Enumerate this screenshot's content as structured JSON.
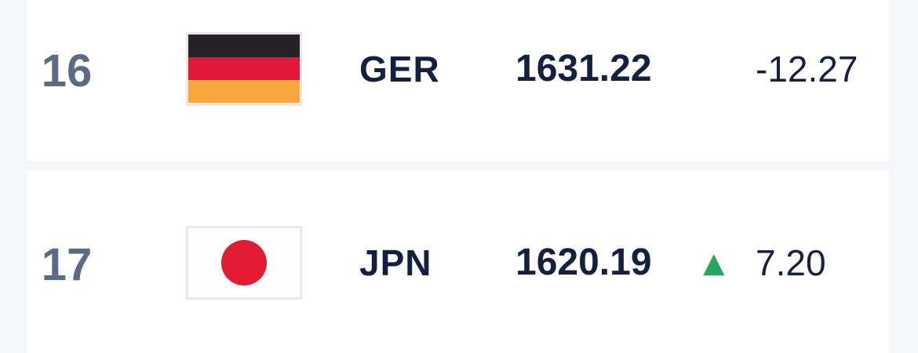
{
  "page": {
    "background_color": "#f5f6fa",
    "card_background_color": "#ffffff"
  },
  "colors": {
    "rank_text": "#5c6a86",
    "primary_text": "#132040",
    "change_text": "#15223f",
    "positive_trend": "#24a85c",
    "flag_border": "#e5e8f0",
    "germany_flag": [
      "#272226",
      "#e2183a",
      "#f7a73c"
    ],
    "japan_flag": [
      "#fdfdfd",
      "#e31b31"
    ]
  },
  "ranking_rows": [
    {
      "rank": "16",
      "country_code": "GER",
      "flag_icon": "germany-flag",
      "points": "1631.22",
      "change_arrow": "",
      "change": "-12.27",
      "trend": "down"
    },
    {
      "rank": "17",
      "country_code": "JPN",
      "flag_icon": "japan-flag",
      "points": "1620.19",
      "change_arrow": "▲",
      "change": "7.20",
      "trend": "up"
    }
  ]
}
